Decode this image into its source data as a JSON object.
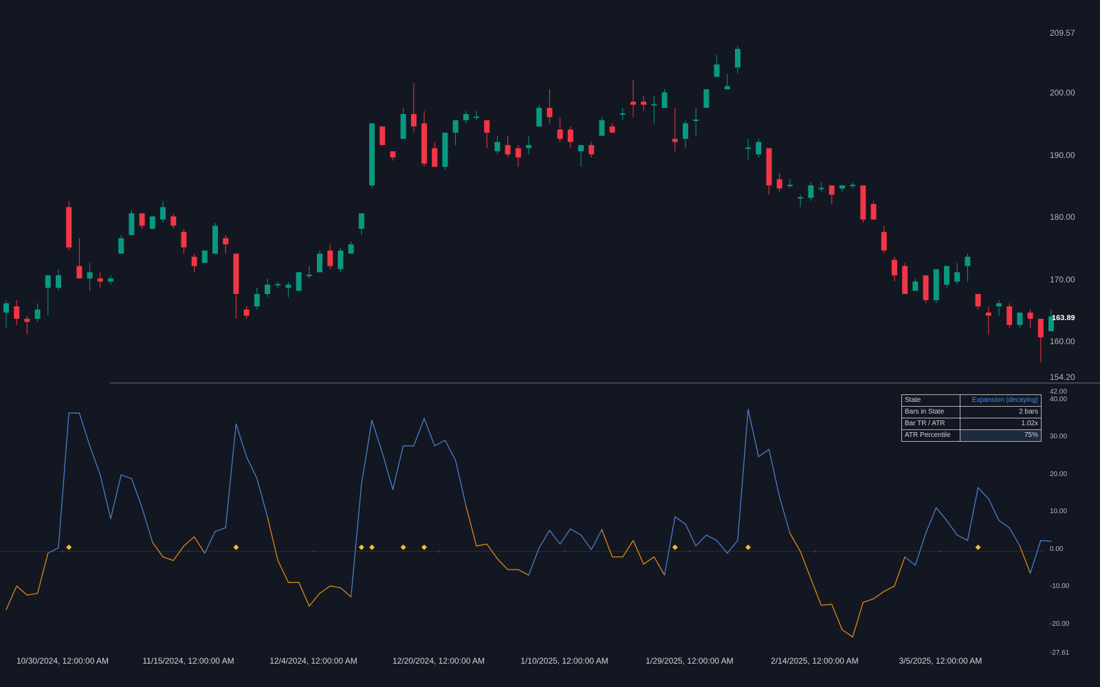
{
  "price_axis": {
    "labels": [
      "209.57",
      "200.00",
      "190.00",
      "180.00",
      "170.00",
      "160.00",
      "154.20"
    ],
    "last_price": "163.89"
  },
  "indicator_axis": {
    "labels": [
      "42.00",
      "40.00",
      "30.00",
      "20.00",
      "10.00",
      "0.00",
      "-10.00",
      "-20.00",
      "-27.61"
    ]
  },
  "time_axis": {
    "labels": [
      "10/30/2024, 12:00:00 AM",
      "11/15/2024, 12:00:00 AM",
      "12/4/2024, 12:00:00 AM",
      "12/20/2024, 12:00:00 AM",
      "1/10/2025, 12:00:00 AM",
      "1/29/2025, 12:00:00 AM",
      "2/14/2025, 12:00:00 AM",
      "3/5/2025, 12:00:00 AM"
    ]
  },
  "state_table": {
    "rows": [
      {
        "label": "State",
        "value": "Expansion (decaying)"
      },
      {
        "label": "Bars in State",
        "value": "2 bars"
      },
      {
        "label": "Bar TR / ATR",
        "value": "1.02x"
      },
      {
        "label": "ATR Percentile",
        "value": "75%"
      }
    ]
  },
  "colors": {
    "background": "#131722",
    "up": "#089981",
    "down": "#f23645",
    "line_blue": "#4a7fc8",
    "line_orange": "#e08a12",
    "marker": "#f0c030",
    "accent": "#3d8ef7"
  },
  "chart_data": [
    {
      "type": "candlestick",
      "ylim": [
        154.2,
        209.57
      ],
      "candles": [
        [
          164.5,
          166.0,
          162.0,
          166.5
        ],
        [
          165.5,
          163.5,
          162.5,
          166.5
        ],
        [
          163.5,
          163.0,
          161.0,
          164.0
        ],
        [
          163.5,
          165.0,
          163.0,
          166.0
        ],
        [
          168.5,
          170.5,
          164.0,
          170.5
        ],
        [
          168.5,
          170.5,
          168.0,
          171.5
        ],
        [
          181.5,
          175.0,
          174.5,
          182.5
        ],
        [
          172.0,
          170.0,
          170.0,
          176.5
        ],
        [
          170.0,
          171.0,
          168.0,
          172.5
        ],
        [
          170.0,
          169.5,
          168.5,
          171.0
        ],
        [
          169.5,
          170.0,
          169.0,
          170.5
        ],
        [
          174.0,
          176.5,
          174.0,
          177.0
        ],
        [
          177.0,
          180.5,
          177.0,
          181.0
        ],
        [
          180.5,
          178.5,
          178.0,
          180.5
        ],
        [
          178.0,
          180.0,
          178.0,
          180.0
        ],
        [
          179.5,
          181.5,
          179.0,
          182.5
        ],
        [
          180.0,
          178.5,
          178.0,
          180.5
        ],
        [
          177.5,
          175.0,
          174.0,
          178.0
        ],
        [
          173.5,
          172.0,
          171.0,
          174.0
        ],
        [
          172.5,
          174.5,
          172.5,
          174.5
        ],
        [
          174.0,
          178.5,
          174.0,
          179.0
        ],
        [
          176.5,
          175.5,
          174.0,
          177.0
        ],
        [
          174.0,
          167.5,
          163.5,
          174.0
        ],
        [
          165.0,
          164.0,
          163.5,
          165.5
        ],
        [
          165.5,
          167.5,
          165.0,
          168.5
        ],
        [
          167.5,
          169.0,
          167.0,
          170.0
        ],
        [
          169.0,
          169.0,
          168.5,
          169.5
        ],
        [
          168.5,
          169.0,
          167.0,
          169.5
        ],
        [
          168.0,
          171.0,
          168.0,
          171.0
        ],
        [
          170.5,
          170.5,
          170.0,
          172.0
        ],
        [
          171.0,
          174.0,
          171.0,
          174.5
        ],
        [
          174.5,
          172.0,
          171.5,
          175.5
        ],
        [
          171.5,
          174.5,
          171.0,
          175.0
        ],
        [
          174.0,
          175.5,
          174.0,
          176.0
        ],
        [
          178.0,
          180.5,
          177.0,
          180.5
        ],
        [
          185.0,
          195.0,
          184.5,
          195.0
        ],
        [
          194.5,
          191.5,
          191.5,
          194.5
        ],
        [
          190.5,
          189.5,
          189.0,
          190.5
        ],
        [
          192.5,
          196.5,
          192.5,
          197.5
        ],
        [
          196.5,
          194.5,
          193.5,
          201.5
        ],
        [
          195.0,
          188.5,
          188.0,
          197.0
        ],
        [
          191.0,
          188.0,
          188.0,
          192.0
        ],
        [
          188.0,
          193.5,
          187.5,
          193.5
        ],
        [
          193.5,
          195.5,
          191.5,
          195.5
        ],
        [
          195.5,
          196.5,
          195.0,
          197.0
        ],
        [
          196.0,
          196.0,
          195.5,
          197.0
        ],
        [
          195.5,
          193.5,
          191.0,
          195.5
        ],
        [
          190.5,
          192.0,
          190.0,
          193.0
        ],
        [
          191.5,
          190.0,
          189.5,
          193.0
        ],
        [
          191.0,
          189.5,
          188.0,
          191.5
        ],
        [
          191.0,
          191.5,
          190.0,
          193.0
        ],
        [
          194.5,
          197.5,
          194.5,
          198.0
        ],
        [
          197.5,
          196.0,
          195.0,
          200.5
        ],
        [
          194.0,
          192.5,
          192.0,
          196.0
        ],
        [
          194.0,
          192.0,
          191.0,
          194.5
        ],
        [
          190.5,
          191.5,
          188.0,
          191.5
        ],
        [
          191.5,
          190.0,
          189.5,
          192.0
        ],
        [
          193.0,
          195.5,
          193.0,
          196.0
        ],
        [
          194.5,
          193.5,
          193.5,
          195.0
        ],
        [
          196.5,
          196.5,
          195.5,
          197.5
        ],
        [
          198.5,
          198.0,
          196.0,
          202.0
        ],
        [
          198.5,
          198.0,
          197.0,
          199.5
        ],
        [
          198.0,
          198.0,
          195.0,
          199.5
        ],
        [
          197.5,
          200.0,
          197.5,
          200.5
        ],
        [
          192.5,
          192.0,
          190.5,
          197.5
        ],
        [
          192.5,
          195.0,
          191.0,
          195.5
        ],
        [
          195.5,
          195.5,
          193.0,
          197.5
        ],
        [
          197.5,
          200.5,
          197.5,
          200.5
        ],
        [
          202.5,
          204.5,
          202.5,
          206.0
        ],
        [
          200.5,
          201.0,
          200.5,
          203.0
        ],
        [
          204.0,
          207.0,
          203.0,
          207.5
        ],
        [
          191.0,
          191.0,
          189.0,
          192.5
        ],
        [
          190.0,
          192.0,
          189.5,
          192.5
        ],
        [
          191.0,
          185.0,
          183.5,
          191.0
        ],
        [
          186.0,
          184.5,
          184.0,
          187.0
        ],
        [
          185.0,
          185.0,
          184.5,
          186.0
        ],
        [
          183.0,
          183.0,
          181.5,
          183.5
        ],
        [
          183.0,
          185.0,
          182.5,
          185.5
        ],
        [
          184.5,
          184.5,
          184.0,
          185.5
        ],
        [
          185.0,
          183.5,
          182.0,
          185.0
        ],
        [
          184.5,
          185.0,
          184.0,
          185.0
        ],
        [
          185.0,
          185.0,
          184.5,
          185.5
        ],
        [
          185.0,
          179.5,
          179.0,
          185.0
        ],
        [
          182.0,
          179.5,
          179.5,
          182.5
        ],
        [
          177.5,
          174.5,
          174.0,
          178.5
        ],
        [
          173.0,
          170.5,
          169.5,
          173.5
        ],
        [
          172.0,
          167.5,
          167.5,
          172.5
        ],
        [
          168.0,
          169.5,
          168.0,
          170.0
        ],
        [
          170.5,
          166.5,
          166.0,
          170.5
        ],
        [
          166.5,
          171.5,
          166.0,
          171.5
        ],
        [
          169.0,
          172.0,
          168.5,
          172.0
        ],
        [
          169.5,
          171.0,
          169.0,
          172.5
        ],
        [
          172.0,
          173.5,
          169.5,
          174.0
        ],
        [
          167.5,
          165.5,
          165.0,
          167.5
        ],
        [
          164.5,
          164.0,
          161.0,
          165.5
        ],
        [
          165.5,
          166.0,
          164.0,
          166.5
        ],
        [
          165.5,
          162.5,
          162.0,
          166.0
        ],
        [
          162.5,
          164.5,
          162.0,
          164.5
        ],
        [
          164.5,
          163.5,
          162.0,
          165.0
        ],
        [
          163.5,
          160.5,
          156.5,
          163.5
        ],
        [
          161.5,
          163.89,
          161.5,
          165.0
        ]
      ]
    },
    {
      "type": "line",
      "ylim": [
        -27.61,
        42.0
      ],
      "series": [
        {
          "values": [
            -16,
            -9.5,
            -12,
            -11.5,
            -0.5,
            1,
            38,
            38,
            29,
            21,
            9,
            21,
            20,
            12,
            2.5,
            -1.5,
            -2.5,
            1.5,
            4,
            -0.5,
            5.5,
            6.5,
            35,
            26,
            20,
            9.5,
            -2.5,
            -8.5,
            -8.5,
            -15,
            -11.5,
            -9.5,
            -10,
            -12.5,
            18.5,
            36,
            27,
            17,
            29,
            29,
            36.5,
            29,
            30.5,
            25,
            12.5,
            1.5,
            2,
            -2,
            -5,
            -5,
            -6.5,
            1,
            5.8,
            2,
            6.2,
            4.5,
            0.5,
            6,
            -1.5,
            -1.5,
            3,
            -3.5,
            -1.5,
            -6.5,
            9.5,
            7.5,
            1.5,
            4.5,
            3,
            -0.5,
            3,
            39,
            26,
            28,
            15,
            5,
            0,
            -7.5,
            -14.8,
            -14.5,
            -21.5,
            -23.5,
            -14,
            -13,
            -11,
            -9.5,
            -1.5,
            -3.8,
            5,
            12,
            8.5,
            4.5,
            3,
            17.5,
            14.5,
            8.5,
            6.5,
            1.5,
            -6,
            3,
            2.8
          ],
          "colors": [
            "o",
            "o",
            "o",
            "o",
            "o",
            "b",
            "b",
            "b",
            "b",
            "b",
            "b",
            "b",
            "b",
            "b",
            "b",
            "o",
            "o",
            "o",
            "o",
            "o",
            "b",
            "b",
            "b",
            "b",
            "b",
            "b",
            "o",
            "o",
            "o",
            "o",
            "o",
            "o",
            "o",
            "o",
            "b",
            "b",
            "b",
            "b",
            "b",
            "b",
            "b",
            "b",
            "b",
            "b",
            "b",
            "o",
            "o",
            "o",
            "o",
            "o",
            "o",
            "b",
            "b",
            "b",
            "b",
            "b",
            "b",
            "b",
            "o",
            "o",
            "o",
            "o",
            "o",
            "o",
            "b",
            "b",
            "b",
            "b",
            "b",
            "b",
            "b",
            "b",
            "b",
            "b",
            "b",
            "b",
            "o",
            "o",
            "o",
            "o",
            "o",
            "o",
            "o",
            "o",
            "o",
            "o",
            "o",
            "b",
            "b",
            "b",
            "b",
            "b",
            "b",
            "b",
            "b",
            "b",
            "b",
            "b",
            "o",
            "b",
            "b"
          ]
        }
      ],
      "markers_at_index": [
        6,
        22,
        34,
        35,
        38,
        40,
        64,
        71,
        93
      ]
    }
  ]
}
